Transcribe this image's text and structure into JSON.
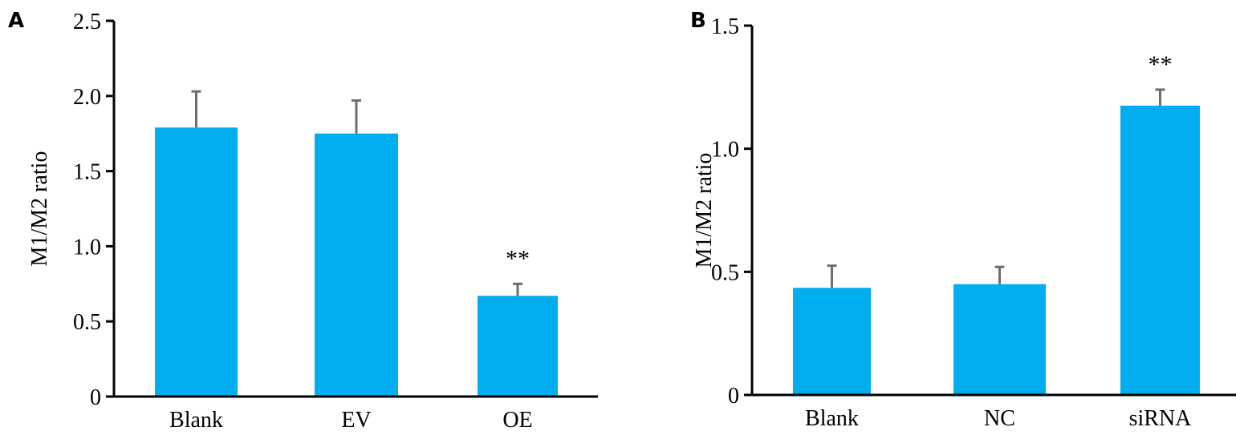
{
  "chart_data": [
    {
      "type": "bar",
      "panel_label": "A",
      "title": "",
      "xlabel": "",
      "ylabel": "M1/M2 ratio",
      "ylim": [
        0,
        2.5
      ],
      "yticks": [
        "0",
        "0.5",
        "1.0",
        "1.5",
        "2.0",
        "2.5"
      ],
      "categories": [
        "Blank",
        "EV",
        "OE"
      ],
      "values": [
        1.79,
        1.75,
        0.67
      ],
      "error_upper": [
        2.03,
        1.97,
        0.75
      ],
      "annotations": [
        "",
        "",
        "**"
      ],
      "bar_color": "#00AEEF",
      "grid": false
    },
    {
      "type": "bar",
      "panel_label": "B",
      "title": "",
      "xlabel": "",
      "ylabel": "M1/M2 ratio",
      "ylim": [
        0,
        1.5
      ],
      "yticks": [
        "0",
        "0.5",
        "1.0",
        "1.5"
      ],
      "categories": [
        "Blank",
        "NC",
        "siRNA"
      ],
      "values": [
        0.435,
        0.45,
        1.175
      ],
      "error_upper": [
        0.525,
        0.52,
        1.24
      ],
      "annotations": [
        "",
        "",
        "**"
      ],
      "bar_color": "#00AEEF",
      "grid": false
    }
  ]
}
